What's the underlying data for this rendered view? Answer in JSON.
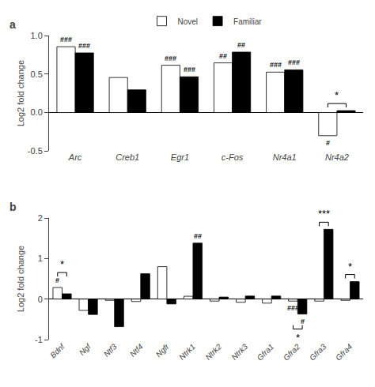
{
  "chart_data": [
    {
      "type": "bar",
      "title": "a",
      "categories": [
        "Arc",
        "Creb1",
        "Egr1",
        "c-Fos",
        "Nr4a1",
        "Nr4a2"
      ],
      "series": [
        {
          "name": "Novel",
          "color": "#ffffff",
          "values": [
            0.855,
            0.455,
            0.615,
            0.645,
            0.525,
            -0.3
          ]
        },
        {
          "name": "Familiar",
          "color": "#000000",
          "values": [
            0.775,
            0.295,
            0.465,
            0.785,
            0.555,
            0.025
          ]
        }
      ],
      "ylabel": "Log2 fold change",
      "ylim": [
        -0.5,
        1.0
      ],
      "yticks": [
        -0.5,
        {
          "value": 0.0,
          "label": "0.0"
        },
        0.5,
        {
          "value": 1.0,
          "label": "1.0"
        }
      ],
      "grid": false,
      "legend": "top",
      "annotations": [
        {
          "text": "###",
          "category": "Arc",
          "series": "Novel",
          "position": "above"
        },
        {
          "text": "###",
          "category": "Egr1",
          "series": "Novel",
          "position": "above"
        },
        {
          "text": "##",
          "category": "c-Fos",
          "series": "Novel",
          "position": "above"
        },
        {
          "text": "###",
          "category": "Nr4a1",
          "series": "Novel",
          "position": "above"
        },
        {
          "text": "###",
          "category": "Arc",
          "series": "Familiar",
          "position": "above"
        },
        {
          "text": "###",
          "category": "Egr1",
          "series": "Familiar",
          "position": "above"
        },
        {
          "text": "##",
          "category": "c-Fos",
          "series": "Familiar",
          "position": "above"
        },
        {
          "text": "###",
          "category": "Nr4a1",
          "series": "Familiar",
          "position": "above"
        },
        {
          "text": "#",
          "category": "Nr4a2",
          "series": "Novel",
          "position": "below"
        },
        {
          "text": "*",
          "category": "Nr4a2",
          "position": "above",
          "bracket": true
        }
      ]
    },
    {
      "type": "bar",
      "title": "b",
      "categories": [
        "Bdnf",
        "Ngf",
        "Ntf3",
        "Ntf4",
        "Ngfr",
        "Ntrk1",
        "Ntrk2",
        "Ntrk3",
        "Gfra1",
        "Gfra2",
        "Gfra3",
        "Gfra4"
      ],
      "series": [
        {
          "name": "Novel",
          "color": "#ffffff",
          "values": [
            0.285,
            -0.28,
            -0.03,
            -0.06,
            0.8,
            0.07,
            -0.05,
            -0.08,
            -0.1,
            -0.05,
            -0.05,
            -0.03
          ]
        },
        {
          "name": "Familiar",
          "color": "#000000",
          "values": [
            0.13,
            -0.38,
            -0.68,
            0.625,
            -0.12,
            1.38,
            0.05,
            0.075,
            0.075,
            -0.37,
            1.72,
            0.43
          ]
        }
      ],
      "ylabel": "Log2 fold change",
      "ylim": [
        -1.0,
        2.0
      ],
      "yticks": [
        -1,
        0,
        1,
        2
      ],
      "grid": false,
      "annotations": [
        {
          "text": "#",
          "category": "Bdnf",
          "series": "Novel",
          "position": "above"
        },
        {
          "text": "###",
          "category": "Gfra2",
          "series": "Novel",
          "position": "below"
        },
        {
          "text": "##",
          "category": "Ntrk1",
          "series": "Familiar",
          "position": "above"
        },
        {
          "text": "#",
          "category": "Gfra2",
          "series": "Familiar",
          "position": "below"
        },
        {
          "text": "*",
          "category": "Bdnf",
          "position": "above",
          "bracket": true
        },
        {
          "text": "*",
          "category": "Gfra2",
          "position": "below",
          "bracket": true
        },
        {
          "text": "***",
          "category": "Gfra3",
          "position": "above",
          "bracket": true
        },
        {
          "text": "*",
          "category": "Gfra4",
          "position": "above",
          "bracket": true
        }
      ]
    }
  ]
}
